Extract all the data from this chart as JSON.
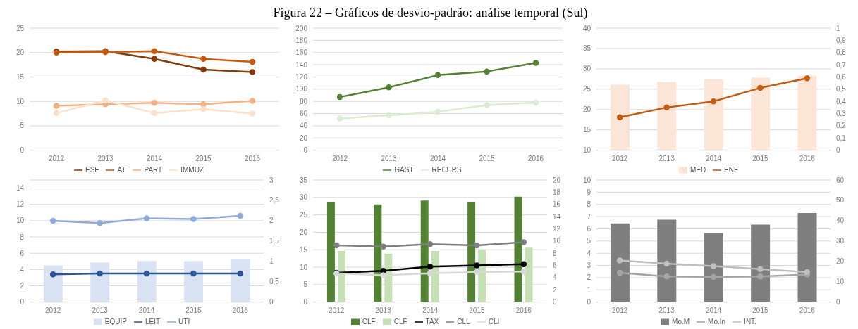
{
  "chart_data": [
    {
      "type": "other",
      "title": "Figura 22 – Gráficos de desvio-padrão: análise temporal (Sul)"
    },
    {
      "type": "line",
      "categories": [
        "2012",
        "2013",
        "2014",
        "2015",
        "2016"
      ],
      "ylim": [
        0,
        25
      ],
      "yticks": [
        0,
        5,
        10,
        15,
        20,
        25
      ],
      "grid": "y",
      "legend": "bottom",
      "marker": "circle",
      "series": [
        {
          "name": "ESF",
          "color": "#843c0c",
          "values": [
            20.2,
            20.3,
            18.7,
            16.5,
            16.0
          ]
        },
        {
          "name": "AT",
          "color": "#c55a11",
          "values": [
            20.0,
            20.1,
            20.3,
            18.7,
            18.1
          ]
        },
        {
          "name": "PART",
          "color": "#f4b183",
          "values": [
            9.1,
            9.4,
            9.7,
            9.4,
            10.1
          ]
        },
        {
          "name": "IMMUZ",
          "color": "#fbe0cc",
          "values": [
            7.6,
            10.2,
            7.6,
            8.4,
            7.5
          ]
        }
      ]
    },
    {
      "type": "line",
      "categories": [
        "2012",
        "2013",
        "2014",
        "2015",
        "2016"
      ],
      "ylim": [
        0,
        200
      ],
      "yticks": [
        0,
        20,
        40,
        60,
        80,
        100,
        120,
        140,
        160,
        180,
        200
      ],
      "grid": "y",
      "legend": "bottom",
      "marker": "circle",
      "series": [
        {
          "name": "GAST",
          "color": "#548235",
          "values": [
            87,
            103,
            123,
            129,
            143
          ]
        },
        {
          "name": "RECURS",
          "color": "#dcecd3",
          "values": [
            52,
            57,
            63,
            74,
            78
          ]
        }
      ]
    },
    {
      "type": "bar",
      "categories": [
        "2012",
        "2013",
        "2014",
        "2015",
        "2016"
      ],
      "ylim": [
        10,
        40
      ],
      "yticks": [
        10,
        15,
        20,
        25,
        30,
        35,
        40
      ],
      "y2lim": [
        0,
        1
      ],
      "y2ticks": [
        0,
        {
          "value": 0.1,
          "label": "0,1"
        },
        {
          "value": 0.2,
          "label": "0,2"
        },
        {
          "value": 0.3,
          "label": "0,3"
        },
        {
          "value": 0.4,
          "label": "0,4"
        },
        {
          "value": 0.5,
          "label": "0,5"
        },
        {
          "value": 0.6,
          "label": "0,6"
        },
        {
          "value": 0.7,
          "label": "0,7"
        },
        {
          "value": 0.8,
          "label": "0,8"
        },
        {
          "value": 0.9,
          "label": "0,9"
        },
        1
      ],
      "grid": "y",
      "legend": "bottom",
      "marker": "circle",
      "series": [
        {
          "name": "MED",
          "color": "#fbe5d6",
          "values": [
            26.1,
            26.8,
            27.4,
            27.8,
            28.3
          ]
        },
        {
          "name": "ENF",
          "type": "line",
          "axis": "y2",
          "color": "#c55a11",
          "values": [
            0.27,
            0.35,
            0.4,
            0.51,
            0.59
          ]
        }
      ]
    },
    {
      "type": "bar",
      "categories": [
        "2012",
        "2013",
        "2014",
        "2015",
        "2016"
      ],
      "ylim": [
        0,
        15
      ],
      "yticks": [
        0,
        2,
        4,
        6,
        8,
        10,
        12,
        14
      ],
      "y2lim": [
        0,
        3
      ],
      "y2ticks": [
        0,
        {
          "value": 0.5,
          "label": "0,5"
        },
        1,
        {
          "value": 1.5,
          "label": "1,5"
        },
        2,
        {
          "value": 2.5,
          "label": "2,5"
        },
        3
      ],
      "grid": "y",
      "legend": "bottom",
      "marker": "circle",
      "series": [
        {
          "name": "EQUIP",
          "axis": "y2",
          "color": "#dae3f3",
          "values": [
            0.9,
            0.97,
            1.01,
            1.01,
            1.06
          ]
        },
        {
          "name": "LEIT",
          "type": "line",
          "color": "#2f5597",
          "values": [
            3.4,
            3.5,
            3.5,
            3.5,
            3.5
          ]
        },
        {
          "name": "UTI",
          "type": "line",
          "color": "#8faadc",
          "values": [
            10.0,
            9.7,
            10.3,
            10.2,
            10.6
          ]
        }
      ]
    },
    {
      "type": "bar",
      "categories": [
        "2012",
        "2013",
        "2014",
        "2015",
        "2016"
      ],
      "ylim": [
        0,
        35
      ],
      "yticks": [
        0,
        5,
        10,
        15,
        20,
        25,
        30,
        35
      ],
      "y2lim": [
        0,
        20
      ],
      "y2ticks": [
        0,
        2,
        4,
        6,
        8,
        10,
        12,
        14,
        16,
        18,
        20
      ],
      "grid": "y",
      "legend": "bottom",
      "marker": "circle",
      "series": [
        {
          "name": "CLF",
          "color": "#548235",
          "values": [
            28.6,
            28.0,
            29.1,
            28.6,
            30.2
          ]
        },
        {
          "name": "CLF",
          "color": "#c5e0b4",
          "values": [
            14.7,
            13.9,
            14.7,
            15.1,
            15.6
          ]
        },
        {
          "name": "TAX",
          "type": "line",
          "axis": "y2",
          "color": "#000000",
          "values": [
            4.8,
            5.1,
            5.8,
            6.0,
            6.2
          ]
        },
        {
          "name": "CLL",
          "type": "line",
          "axis": "y2",
          "color": "#7f7f7f",
          "values": [
            9.3,
            9.1,
            9.5,
            9.3,
            9.8
          ]
        },
        {
          "name": "CLI",
          "type": "line",
          "axis": "y2",
          "color": "#d9d9d9",
          "values": [
            4.7,
            4.4,
            4.7,
            4.9,
            5.0
          ]
        }
      ]
    },
    {
      "type": "bar",
      "categories": [
        "2012",
        "2013",
        "2014",
        "2015",
        "2016"
      ],
      "ylim": [
        0,
        10
      ],
      "yticks": [
        0,
        1,
        2,
        3,
        4,
        5,
        6,
        7,
        8,
        9,
        10
      ],
      "y2lim": [
        0,
        60
      ],
      "y2ticks": [
        0,
        10,
        20,
        30,
        40,
        50,
        60
      ],
      "grid": "y",
      "legend": "bottom",
      "marker": "circle",
      "series": [
        {
          "name": "Mo.M",
          "color": "#7f7f7f",
          "values": [
            6.45,
            6.75,
            5.65,
            6.35,
            7.3
          ]
        },
        {
          "name": "Mo.In",
          "type": "line",
          "axis": "y2",
          "color": "#a5a5a5",
          "values": [
            14.4,
            12.6,
            12.3,
            12.6,
            13.5
          ]
        },
        {
          "name": "INT.",
          "type": "line",
          "axis": "y2",
          "color": "#bfbfbf",
          "values": [
            20.4,
            18.9,
            17.7,
            16.2,
            14.7
          ]
        }
      ]
    }
  ]
}
